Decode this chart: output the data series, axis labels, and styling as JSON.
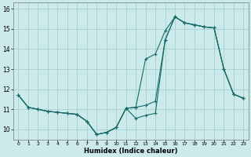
{
  "xlabel": "Humidex (Indice chaleur)",
  "bg_color": "#cceaea",
  "grid_color": "#aad4d4",
  "line_color": "#1a6b6b",
  "xlim": [
    -0.5,
    23.5
  ],
  "ylim": [
    9.5,
    16.3
  ],
  "yticks": [
    10,
    11,
    12,
    13,
    14,
    15,
    16
  ],
  "xticks": [
    0,
    1,
    2,
    3,
    4,
    5,
    6,
    7,
    8,
    9,
    10,
    11,
    12,
    13,
    14,
    15,
    16,
    17,
    18,
    19,
    20,
    21,
    22,
    23
  ],
  "line1_x": [
    0,
    1,
    2,
    3,
    4,
    5,
    6,
    7,
    8,
    9,
    10,
    11,
    12,
    13,
    14,
    15,
    16,
    17,
    18,
    19,
    20,
    21,
    22,
    23
  ],
  "line1_y": [
    11.7,
    11.1,
    11.0,
    10.9,
    10.85,
    10.8,
    10.75,
    10.4,
    9.75,
    9.85,
    10.1,
    11.05,
    11.1,
    13.5,
    13.75,
    14.9,
    15.6,
    15.3,
    15.2,
    15.1,
    15.05,
    13.0,
    11.75,
    11.55
  ],
  "line2_x": [
    0,
    1,
    2,
    3,
    4,
    5,
    6,
    7,
    8,
    9,
    10,
    11,
    12,
    13,
    14,
    15,
    16,
    17,
    18,
    19,
    20,
    21,
    22,
    23
  ],
  "line2_y": [
    11.7,
    11.1,
    11.0,
    10.9,
    10.85,
    10.8,
    10.75,
    10.4,
    9.75,
    9.85,
    10.1,
    11.05,
    11.1,
    11.2,
    11.4,
    14.45,
    15.6,
    15.3,
    15.2,
    15.1,
    15.05,
    13.0,
    11.75,
    11.55
  ],
  "line3_x": [
    0,
    1,
    2,
    3,
    4,
    5,
    6,
    7,
    8,
    9,
    10,
    11,
    12,
    13,
    14,
    15,
    16,
    17,
    18,
    19,
    20,
    21,
    22,
    23
  ],
  "line3_y": [
    11.7,
    11.1,
    11.0,
    10.9,
    10.85,
    10.8,
    10.75,
    10.4,
    9.75,
    9.85,
    10.1,
    11.05,
    10.55,
    10.7,
    10.8,
    14.45,
    15.6,
    15.3,
    15.2,
    15.1,
    15.05,
    13.0,
    11.75,
    11.55
  ]
}
